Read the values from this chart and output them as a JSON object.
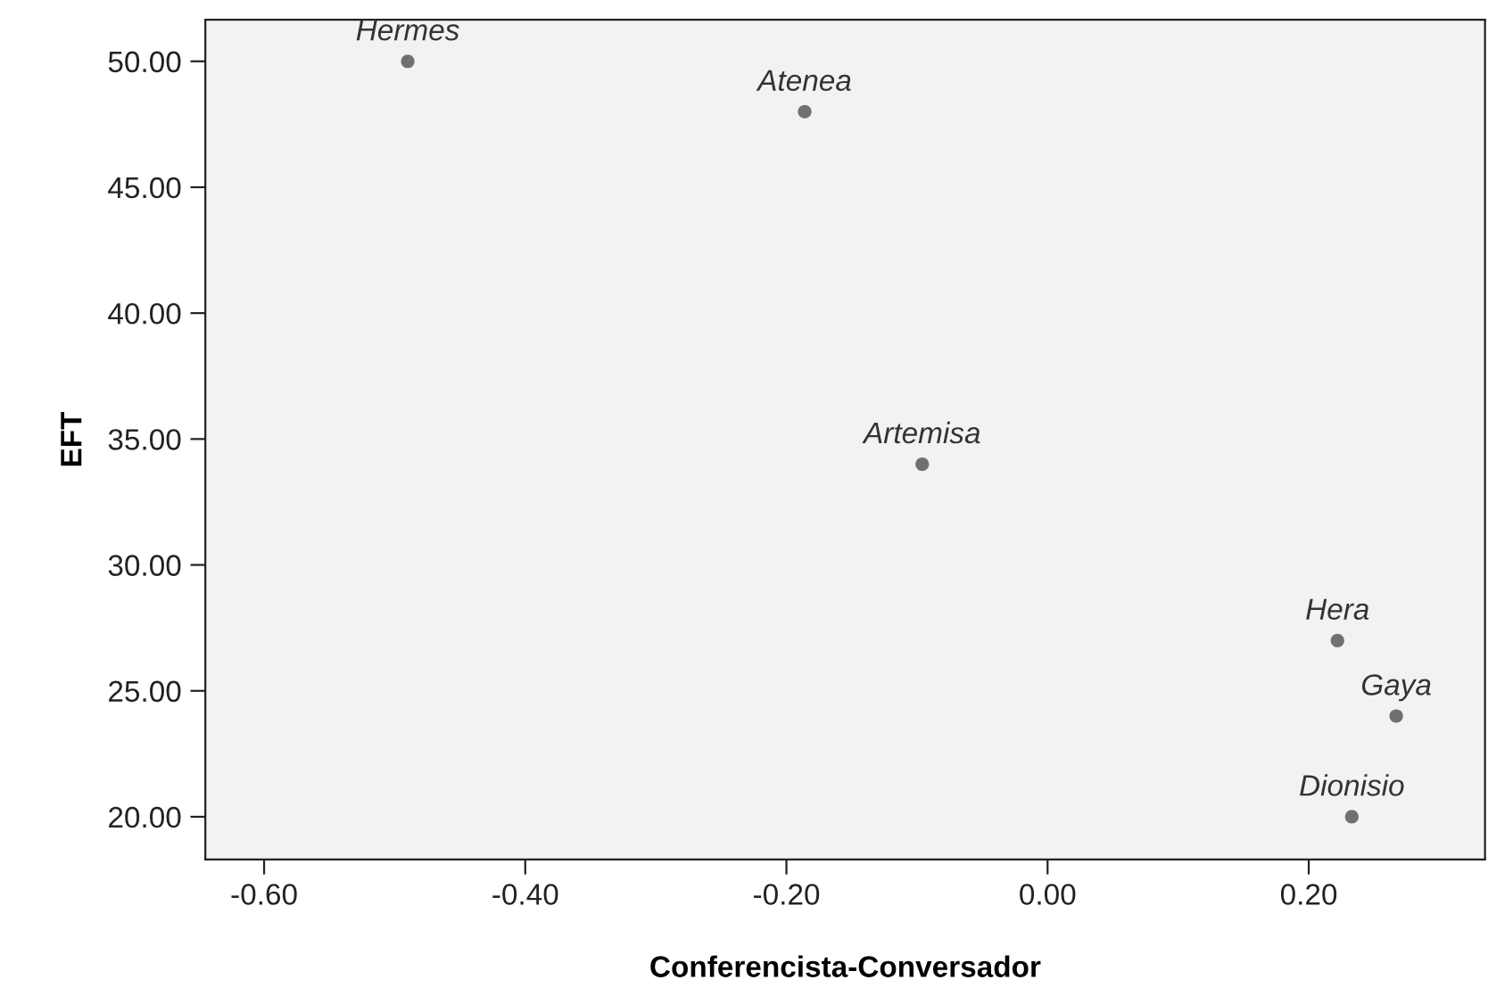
{
  "chart_data": {
    "type": "scatter",
    "xlabel": "Conferencista-Conversador",
    "ylabel": "EFT",
    "x": [
      -0.49,
      -0.186,
      -0.096,
      0.222,
      0.267,
      0.233
    ],
    "values": [
      50,
      48,
      34,
      27,
      24,
      20
    ],
    "color": "#707070",
    "marker": "circle",
    "annotations": [
      {
        "text": "Hermes",
        "x": -0.49,
        "y": 50
      },
      {
        "text": "Atenea",
        "x": -0.186,
        "y": 48
      },
      {
        "text": "Artemisa",
        "x": -0.096,
        "y": 34
      },
      {
        "text": "Hera",
        "x": 0.222,
        "y": 27
      },
      {
        "text": "Gaya",
        "x": 0.267,
        "y": 24
      },
      {
        "text": "Dionisio",
        "x": 0.233,
        "y": 20
      }
    ],
    "xlim": [
      -0.645,
      0.335
    ],
    "ylim": [
      18.3,
      51.65
    ],
    "xticks": [
      {
        "value": -0.6,
        "label": "-0.60"
      },
      {
        "value": -0.4,
        "label": "-0.40"
      },
      {
        "value": -0.2,
        "label": "-0.20"
      },
      {
        "value": 0,
        "label": "0.00"
      },
      {
        "value": 0.2,
        "label": "0.20"
      }
    ],
    "yticks": [
      {
        "value": 20,
        "label": "20.00"
      },
      {
        "value": 25,
        "label": "25.00"
      },
      {
        "value": 30,
        "label": "30.00"
      },
      {
        "value": 35,
        "label": "35.00"
      },
      {
        "value": 40,
        "label": "40.00"
      },
      {
        "value": 45,
        "label": "45.00"
      },
      {
        "value": 50,
        "label": "50.00"
      }
    ],
    "grid": false,
    "legend": false
  }
}
